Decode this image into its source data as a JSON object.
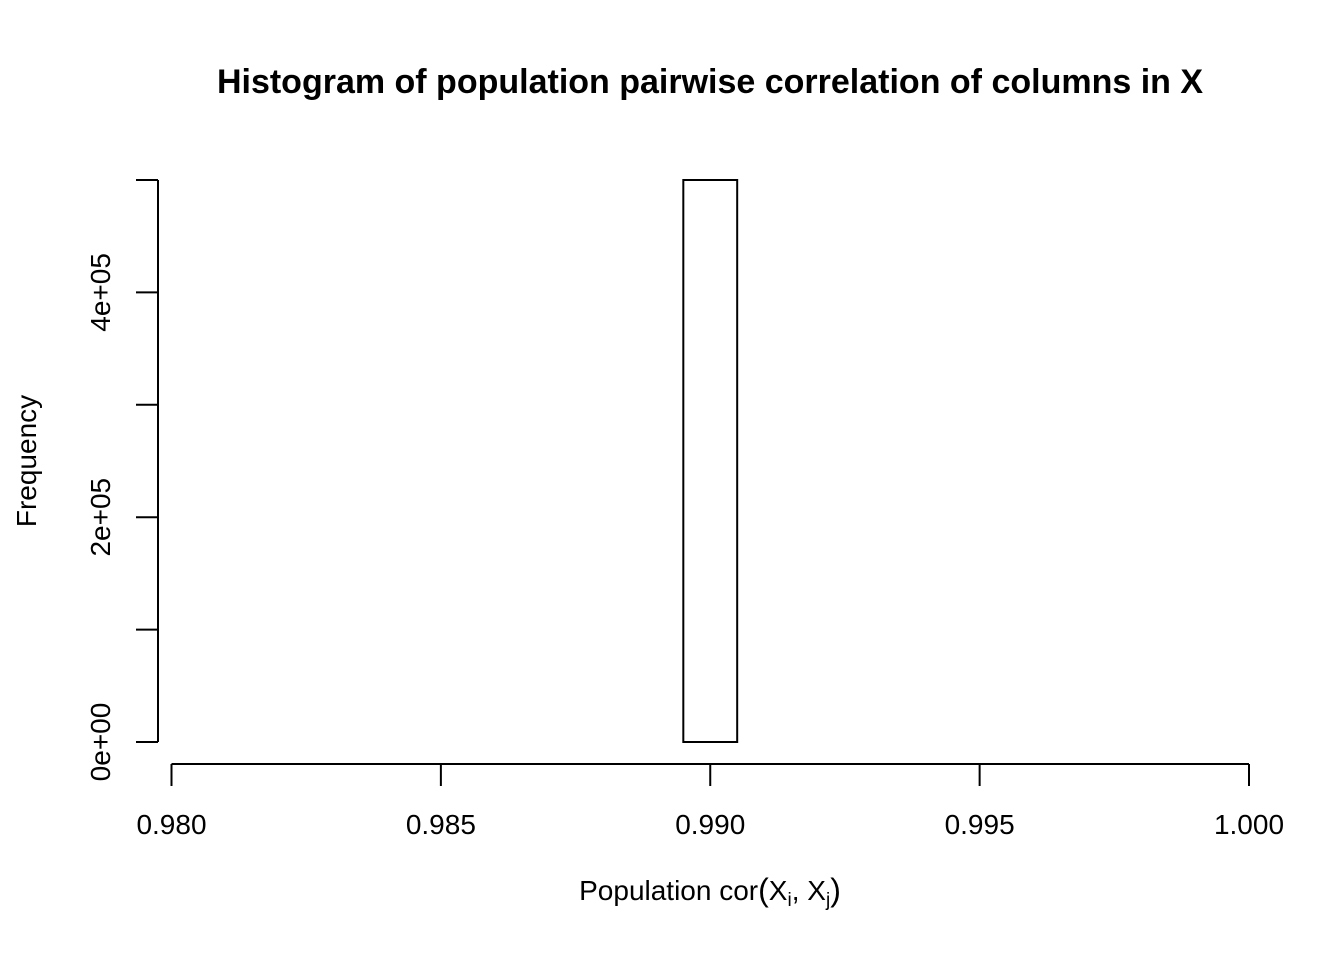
{
  "chart_data": {
    "type": "bar",
    "title": "Histogram of population pairwise correlation of columns in X",
    "xlabel": {
      "prefix": "Population cor",
      "var1": "X",
      "sub1": "i",
      "sep": ", ",
      "var2": "X",
      "sub2": "j"
    },
    "ylabel": "Frequency",
    "xlim": [
      0.9805,
      0.9995
    ],
    "ylim": [
      0,
      500000
    ],
    "x_ticks": [
      0.98,
      0.985,
      0.99,
      0.995,
      1.0
    ],
    "x_tick_labels": [
      "0.980",
      "0.985",
      "0.990",
      "0.995",
      "1.000"
    ],
    "y_ticks": [
      0,
      100000,
      200000,
      300000,
      400000,
      500000
    ],
    "y_tick_labels": [
      "0e+00",
      "",
      "2e+05",
      "",
      "4e+05",
      ""
    ],
    "bin_width": 0.001,
    "bins": [
      {
        "start": 0.9805,
        "end": 0.9815,
        "count": 0
      },
      {
        "start": 0.9815,
        "end": 0.9825,
        "count": 0
      },
      {
        "start": 0.9825,
        "end": 0.9835,
        "count": 0
      },
      {
        "start": 0.9835,
        "end": 0.9845,
        "count": 0
      },
      {
        "start": 0.9845,
        "end": 0.9855,
        "count": 0
      },
      {
        "start": 0.9855,
        "end": 0.9865,
        "count": 0
      },
      {
        "start": 0.9865,
        "end": 0.9875,
        "count": 0
      },
      {
        "start": 0.9875,
        "end": 0.9885,
        "count": 0
      },
      {
        "start": 0.9885,
        "end": 0.9895,
        "count": 0
      },
      {
        "start": 0.9895,
        "end": 0.9905,
        "count": 500000
      },
      {
        "start": 0.9905,
        "end": 0.9915,
        "count": 0
      },
      {
        "start": 0.9915,
        "end": 0.9925,
        "count": 0
      },
      {
        "start": 0.9925,
        "end": 0.9935,
        "count": 0
      },
      {
        "start": 0.9935,
        "end": 0.9945,
        "count": 0
      },
      {
        "start": 0.9945,
        "end": 0.9955,
        "count": 0
      },
      {
        "start": 0.9955,
        "end": 0.9965,
        "count": 0
      },
      {
        "start": 0.9965,
        "end": 0.9975,
        "count": 0
      },
      {
        "start": 0.9975,
        "end": 0.9985,
        "count": 0
      },
      {
        "start": 0.9985,
        "end": 0.9995,
        "count": 0
      }
    ],
    "grid": false,
    "legend": "none"
  }
}
